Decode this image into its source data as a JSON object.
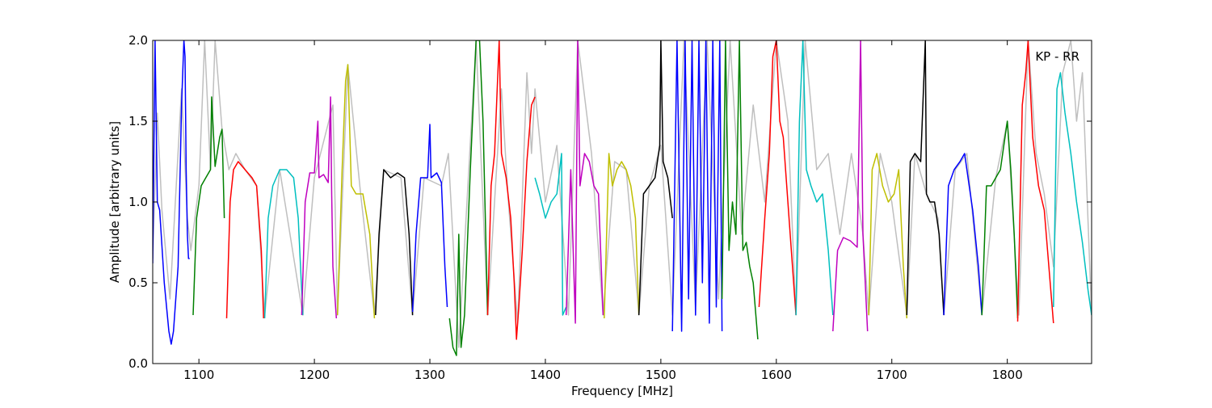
{
  "chart_data": {
    "type": "line",
    "title": "",
    "xlabel": "Frequency [MHz]",
    "ylabel": "Amplitude [arbitrary units]",
    "annotation": "KP - RR",
    "xlim": [
      1060,
      1873
    ],
    "ylim": [
      0.0,
      2.0
    ],
    "x_ticks": [
      1100,
      1200,
      1300,
      1400,
      1500,
      1600,
      1700,
      1800
    ],
    "x_tick_labels": [
      "1100",
      "1200",
      "1300",
      "1400",
      "1500",
      "1600",
      "1700",
      "1800"
    ],
    "y_ticks": [
      0.0,
      0.5,
      1.0,
      1.5,
      2.0
    ],
    "y_tick_labels": [
      "0.0",
      "0.5",
      "1.0",
      "1.5",
      "2.0"
    ],
    "grid": false,
    "colors": {
      "background_trace": "#bfbfbf",
      "blue": "#0000ff",
      "green": "#008000",
      "red": "#ff0000",
      "cyan": "#00bfbf",
      "magenta": "#bf00bf",
      "yellow": "#bfbf00",
      "black": "#000000"
    },
    "segments": [
      {
        "color": "blue",
        "x": [
          1060,
          1062,
          1064,
          1066,
          1070,
          1074,
          1076,
          1078,
          1082,
          1085,
          1087,
          1088,
          1089,
          1090,
          1091,
          1092
        ],
        "y": [
          0.62,
          2.0,
          1.0,
          0.95,
          0.5,
          0.2,
          0.12,
          0.2,
          0.6,
          1.6,
          2.0,
          1.9,
          1.2,
          0.8,
          0.65,
          0.65
        ]
      },
      {
        "color": "green",
        "x": [
          1095,
          1098,
          1102,
          1106,
          1110,
          1111,
          1114,
          1118,
          1120,
          1122
        ],
        "y": [
          0.3,
          0.9,
          1.1,
          1.15,
          1.2,
          1.65,
          1.22,
          1.4,
          1.45,
          0.9
        ]
      },
      {
        "color": "red",
        "x": [
          1124,
          1127,
          1130,
          1134,
          1140,
          1146,
          1150,
          1154,
          1156
        ],
        "y": [
          0.28,
          1.0,
          1.2,
          1.25,
          1.2,
          1.15,
          1.1,
          0.7,
          0.28
        ]
      },
      {
        "color": "cyan",
        "x": [
          1157,
          1160,
          1164,
          1170,
          1176,
          1182,
          1186,
          1190
        ],
        "y": [
          0.28,
          0.9,
          1.1,
          1.2,
          1.2,
          1.15,
          0.9,
          0.3
        ]
      },
      {
        "color": "magenta",
        "x": [
          1189,
          1192,
          1196,
          1200,
          1203,
          1204,
          1208,
          1212,
          1214,
          1215,
          1216,
          1219
        ],
        "y": [
          0.3,
          1.0,
          1.18,
          1.18,
          1.5,
          1.15,
          1.17,
          1.12,
          1.65,
          1.05,
          0.6,
          0.28
        ]
      },
      {
        "color": "yellow",
        "x": [
          1220,
          1224,
          1227,
          1229,
          1232,
          1236,
          1242,
          1248,
          1252
        ],
        "y": [
          0.3,
          1.2,
          1.75,
          1.85,
          1.1,
          1.05,
          1.05,
          0.8,
          0.28
        ]
      },
      {
        "color": "black",
        "x": [
          1253,
          1256,
          1260,
          1266,
          1272,
          1278,
          1282,
          1285
        ],
        "y": [
          0.3,
          0.8,
          1.2,
          1.15,
          1.18,
          1.15,
          0.8,
          0.3
        ]
      },
      {
        "color": "blue",
        "x": [
          1285,
          1288,
          1292,
          1298,
          1300,
          1301,
          1306,
          1310,
          1313,
          1315
        ],
        "y": [
          0.32,
          0.8,
          1.15,
          1.15,
          1.48,
          1.15,
          1.18,
          1.12,
          0.6,
          0.35
        ]
      },
      {
        "color": "green",
        "x": [
          1317,
          1320,
          1323,
          1325,
          1327,
          1330,
          1335,
          1340,
          1343,
          1346,
          1350
        ],
        "y": [
          0.28,
          0.1,
          0.05,
          0.8,
          0.1,
          0.3,
          1.2,
          2.0,
          2.0,
          1.5,
          0.3
        ]
      },
      {
        "color": "red",
        "x": [
          1350,
          1353,
          1356,
          1360,
          1362,
          1366,
          1370,
          1373,
          1375,
          1377,
          1380,
          1384,
          1388,
          1391
        ],
        "y": [
          0.3,
          1.1,
          1.3,
          2.0,
          1.3,
          1.15,
          0.9,
          0.5,
          0.15,
          0.35,
          0.7,
          1.25,
          1.6,
          1.65
        ]
      },
      {
        "color": "cyan",
        "x": [
          1391,
          1395,
          1400,
          1405,
          1410,
          1414,
          1415,
          1418
        ],
        "y": [
          1.15,
          1.05,
          0.9,
          1.0,
          1.05,
          1.3,
          0.3,
          0.35
        ]
      },
      {
        "color": "magenta",
        "x": [
          1418,
          1422,
          1426,
          1428,
          1430,
          1434,
          1438,
          1442,
          1446,
          1450
        ],
        "y": [
          0.3,
          1.2,
          0.25,
          2.0,
          1.1,
          1.3,
          1.25,
          1.1,
          1.05,
          0.3
        ]
      },
      {
        "color": "yellow",
        "x": [
          1451,
          1455,
          1458,
          1462,
          1466,
          1470,
          1474,
          1478,
          1481
        ],
        "y": [
          0.28,
          1.3,
          1.1,
          1.2,
          1.25,
          1.2,
          1.1,
          0.9,
          0.3
        ]
      },
      {
        "color": "black",
        "x": [
          1481,
          1485,
          1490,
          1495,
          1499,
          1500,
          1502,
          1506,
          1510
        ],
        "y": [
          0.3,
          1.05,
          1.1,
          1.15,
          1.35,
          2.0,
          1.25,
          1.15,
          0.9
        ]
      },
      {
        "color": "blue",
        "x": [
          1510,
          1514,
          1518,
          1521,
          1524,
          1527,
          1530,
          1533,
          1536,
          1539,
          1542,
          1545,
          1548,
          1551,
          1553
        ],
        "y": [
          0.2,
          2.0,
          0.2,
          2.0,
          0.4,
          2.0,
          0.3,
          2.0,
          0.5,
          2.0,
          0.25,
          2.0,
          0.35,
          2.0,
          0.2
        ]
      },
      {
        "color": "green",
        "x": [
          1553,
          1556,
          1559,
          1562,
          1565,
          1568,
          1571,
          1574,
          1577,
          1580,
          1584
        ],
        "y": [
          0.4,
          2.0,
          0.7,
          1.0,
          0.8,
          2.0,
          0.7,
          0.75,
          0.6,
          0.5,
          0.15
        ]
      },
      {
        "color": "red",
        "x": [
          1585,
          1590,
          1594,
          1597,
          1600,
          1603,
          1606,
          1610,
          1614,
          1617
        ],
        "y": [
          0.35,
          0.9,
          1.3,
          1.9,
          2.0,
          1.5,
          1.4,
          1.0,
          0.6,
          0.3
        ]
      },
      {
        "color": "cyan",
        "x": [
          1617,
          1620,
          1623,
          1626,
          1630,
          1635,
          1640,
          1645,
          1649
        ],
        "y": [
          0.3,
          1.5,
          2.0,
          1.2,
          1.1,
          1.0,
          1.05,
          0.7,
          0.3
        ]
      },
      {
        "color": "magenta",
        "x": [
          1649,
          1653,
          1658,
          1664,
          1670,
          1673,
          1675,
          1679
        ],
        "y": [
          0.2,
          0.7,
          0.78,
          0.76,
          0.72,
          2.0,
          0.8,
          0.2
        ]
      },
      {
        "color": "yellow",
        "x": [
          1680,
          1683,
          1687,
          1692,
          1697,
          1702,
          1706,
          1710,
          1713
        ],
        "y": [
          0.3,
          1.2,
          1.3,
          1.1,
          1.0,
          1.05,
          1.2,
          0.6,
          0.28
        ]
      },
      {
        "color": "black",
        "x": [
          1713,
          1716,
          1720,
          1725,
          1729,
          1730,
          1733,
          1737,
          1741,
          1745
        ],
        "y": [
          0.3,
          1.25,
          1.3,
          1.25,
          2.0,
          1.05,
          1.0,
          1.0,
          0.8,
          0.3
        ]
      },
      {
        "color": "blue",
        "x": [
          1745,
          1749,
          1754,
          1759,
          1763,
          1767,
          1770,
          1775,
          1778
        ],
        "y": [
          0.3,
          1.1,
          1.2,
          1.25,
          1.3,
          1.1,
          0.95,
          0.6,
          0.3
        ]
      },
      {
        "color": "green",
        "x": [
          1778,
          1782,
          1786,
          1790,
          1794,
          1798,
          1800,
          1803,
          1806,
          1809
        ],
        "y": [
          0.3,
          1.1,
          1.1,
          1.15,
          1.2,
          1.4,
          1.5,
          1.2,
          0.8,
          0.28
        ]
      },
      {
        "color": "red",
        "x": [
          1809,
          1813,
          1816,
          1818,
          1822,
          1827,
          1832,
          1836,
          1840
        ],
        "y": [
          0.26,
          1.6,
          1.8,
          2.0,
          1.4,
          1.1,
          0.95,
          0.6,
          0.25
        ]
      },
      {
        "color": "cyan",
        "x": [
          1840,
          1843,
          1846,
          1850,
          1855,
          1860,
          1865,
          1870,
          1873
        ],
        "y": [
          0.35,
          1.7,
          1.8,
          1.55,
          1.3,
          1.0,
          0.75,
          0.45,
          0.3
        ]
      }
    ],
    "background_trace": {
      "x": [
        1060,
        1064,
        1068,
        1075,
        1085,
        1090,
        1093,
        1100,
        1105,
        1110,
        1114,
        1120,
        1126,
        1132,
        1140,
        1150,
        1157,
        1170,
        1190,
        1200,
        1216,
        1220,
        1229,
        1240,
        1252,
        1260,
        1275,
        1285,
        1295,
        1310,
        1316,
        1325,
        1340,
        1350,
        1362,
        1368,
        1376,
        1384,
        1388,
        1391,
        1400,
        1410,
        1420,
        1428,
        1440,
        1450,
        1460,
        1470,
        1481,
        1490,
        1500,
        1510,
        1520,
        1530,
        1540,
        1550,
        1560,
        1570,
        1580,
        1590,
        1600,
        1610,
        1617,
        1625,
        1635,
        1645,
        1655,
        1665,
        1675,
        1680,
        1690,
        1700,
        1713,
        1720,
        1730,
        1740,
        1745,
        1755,
        1765,
        1778,
        1790,
        1800,
        1810,
        1818,
        1825,
        1832,
        1840,
        1848,
        1855,
        1860,
        1865,
        1873
      ],
      "y": [
        0.65,
        1.55,
        0.95,
        0.4,
        1.7,
        0.9,
        0.7,
        1.1,
        2.0,
        1.2,
        2.0,
        1.45,
        1.2,
        1.3,
        1.2,
        1.1,
        0.3,
        1.2,
        0.3,
        1.15,
        1.6,
        0.3,
        1.85,
        1.05,
        0.3,
        1.2,
        1.15,
        0.3,
        1.15,
        1.1,
        1.3,
        0.1,
        2.0,
        0.3,
        1.7,
        1.0,
        0.25,
        1.8,
        1.3,
        1.7,
        1.0,
        1.35,
        0.3,
        2.0,
        1.3,
        0.3,
        1.25,
        1.2,
        0.3,
        1.1,
        1.35,
        0.3,
        2.0,
        0.35,
        2.0,
        0.4,
        2.0,
        0.8,
        1.6,
        1.0,
        2.0,
        1.5,
        0.3,
        2.0,
        1.2,
        1.3,
        0.8,
        1.3,
        0.8,
        0.3,
        1.3,
        1.0,
        0.3,
        1.3,
        1.05,
        0.9,
        0.3,
        1.2,
        1.3,
        0.3,
        1.15,
        1.5,
        0.3,
        2.0,
        1.3,
        1.05,
        0.6,
        1.8,
        2.0,
        1.5,
        1.8,
        0.3
      ]
    }
  }
}
